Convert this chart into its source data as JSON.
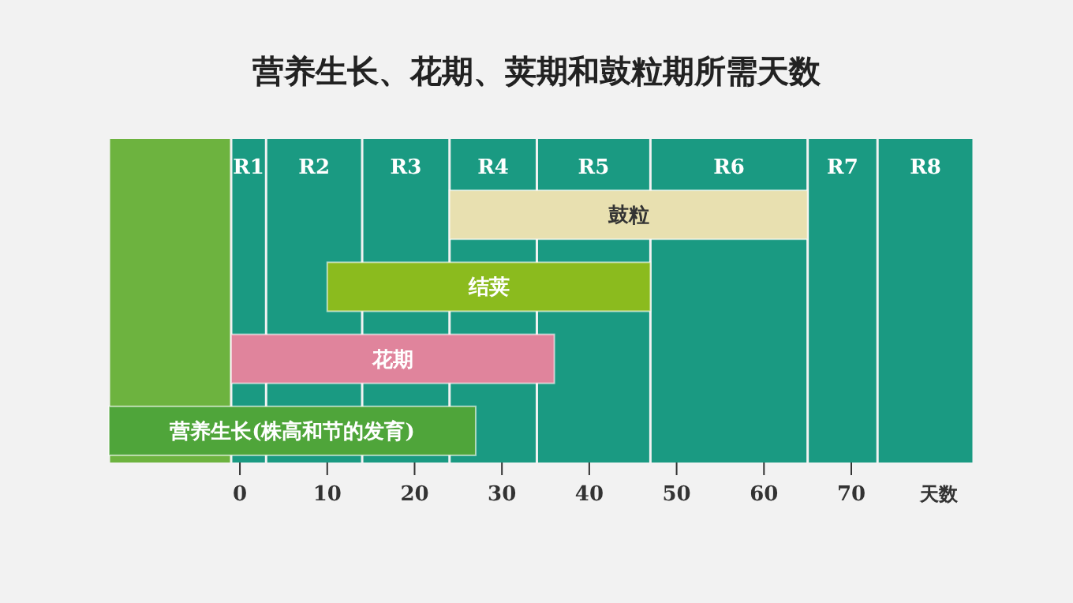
{
  "chart_data": {
    "type": "bar",
    "orientation": "horizontal",
    "title": "营养生长、花期、荚期和鼓粒期所需天数",
    "xlabel": "天数",
    "categories": [
      "鼓粒",
      "结荚",
      "花期",
      "营养生长(株高和节的发育)"
    ],
    "base": [
      24,
      10,
      -1,
      -15
    ],
    "values": [
      41,
      37,
      37,
      42
    ],
    "colors": [
      "#e8e0b0",
      "#8bbb1e",
      "#e0849c",
      "#4fa53a"
    ],
    "xlim": [
      -15,
      84
    ],
    "xticks": [
      0,
      10,
      20,
      30,
      40,
      50,
      60,
      70
    ],
    "bands": [
      {
        "axis": "x",
        "from": -15,
        "to": -1,
        "label": null,
        "color": "#6db33f"
      },
      {
        "axis": "x",
        "from": -1,
        "to": 3,
        "label": "R1",
        "color": "#1a9a82"
      },
      {
        "axis": "x",
        "from": 3,
        "to": 14,
        "label": "R2",
        "color": "#1a9a82"
      },
      {
        "axis": "x",
        "from": 14,
        "to": 24,
        "label": "R3",
        "color": "#1a9a82"
      },
      {
        "axis": "x",
        "from": 24,
        "to": 34,
        "label": "R4",
        "color": "#1a9a82"
      },
      {
        "axis": "x",
        "from": 34,
        "to": 47,
        "label": "R5",
        "color": "#1a9a82"
      },
      {
        "axis": "x",
        "from": 47,
        "to": 65,
        "label": "R6",
        "color": "#1a9a82"
      },
      {
        "axis": "x",
        "from": 65,
        "to": 73,
        "label": "R7",
        "color": "#1a9a82"
      },
      {
        "axis": "x",
        "from": 73,
        "to": 84,
        "label": "R8",
        "color": "#1a9a82"
      }
    ],
    "grid": false
  }
}
